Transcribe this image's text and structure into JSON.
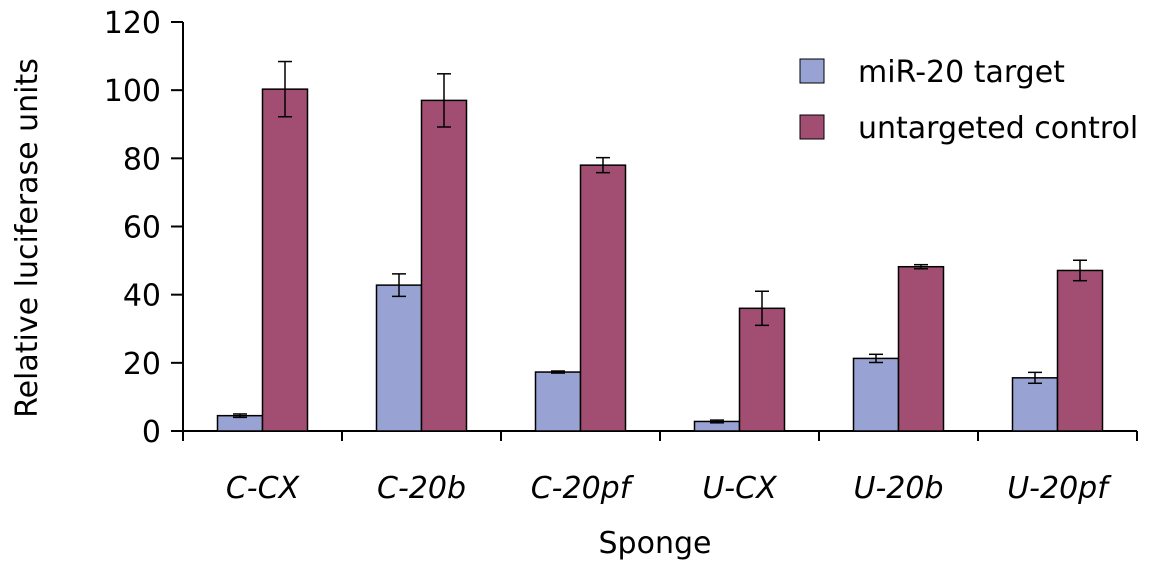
{
  "chart_data": {
    "type": "bar",
    "xlabel": "Sponge",
    "ylabel": "Relative luciferase units",
    "ylim": [
      0,
      120
    ],
    "yticks": [
      0,
      20,
      40,
      60,
      80,
      100,
      120
    ],
    "categories": [
      "C-CX",
      "C-20b",
      "C-20pf",
      "U-CX",
      "U-20b",
      "U-20pf"
    ],
    "series": [
      {
        "name": "miR-20 target",
        "color": "#99a3d3",
        "values": [
          4.5,
          42.8,
          17.3,
          2.8,
          21.3,
          15.6
        ],
        "errors": [
          0.5,
          3.3,
          0.3,
          0.4,
          1.2,
          1.6
        ]
      },
      {
        "name": "untargeted control",
        "color": "#a24e72",
        "values": [
          100.3,
          97,
          78,
          36,
          48.2,
          47.1
        ],
        "errors": [
          8.1,
          7.8,
          2.2,
          5.0,
          0.6,
          3.0
        ]
      }
    ],
    "grid": false,
    "legend_position": "top-right"
  }
}
